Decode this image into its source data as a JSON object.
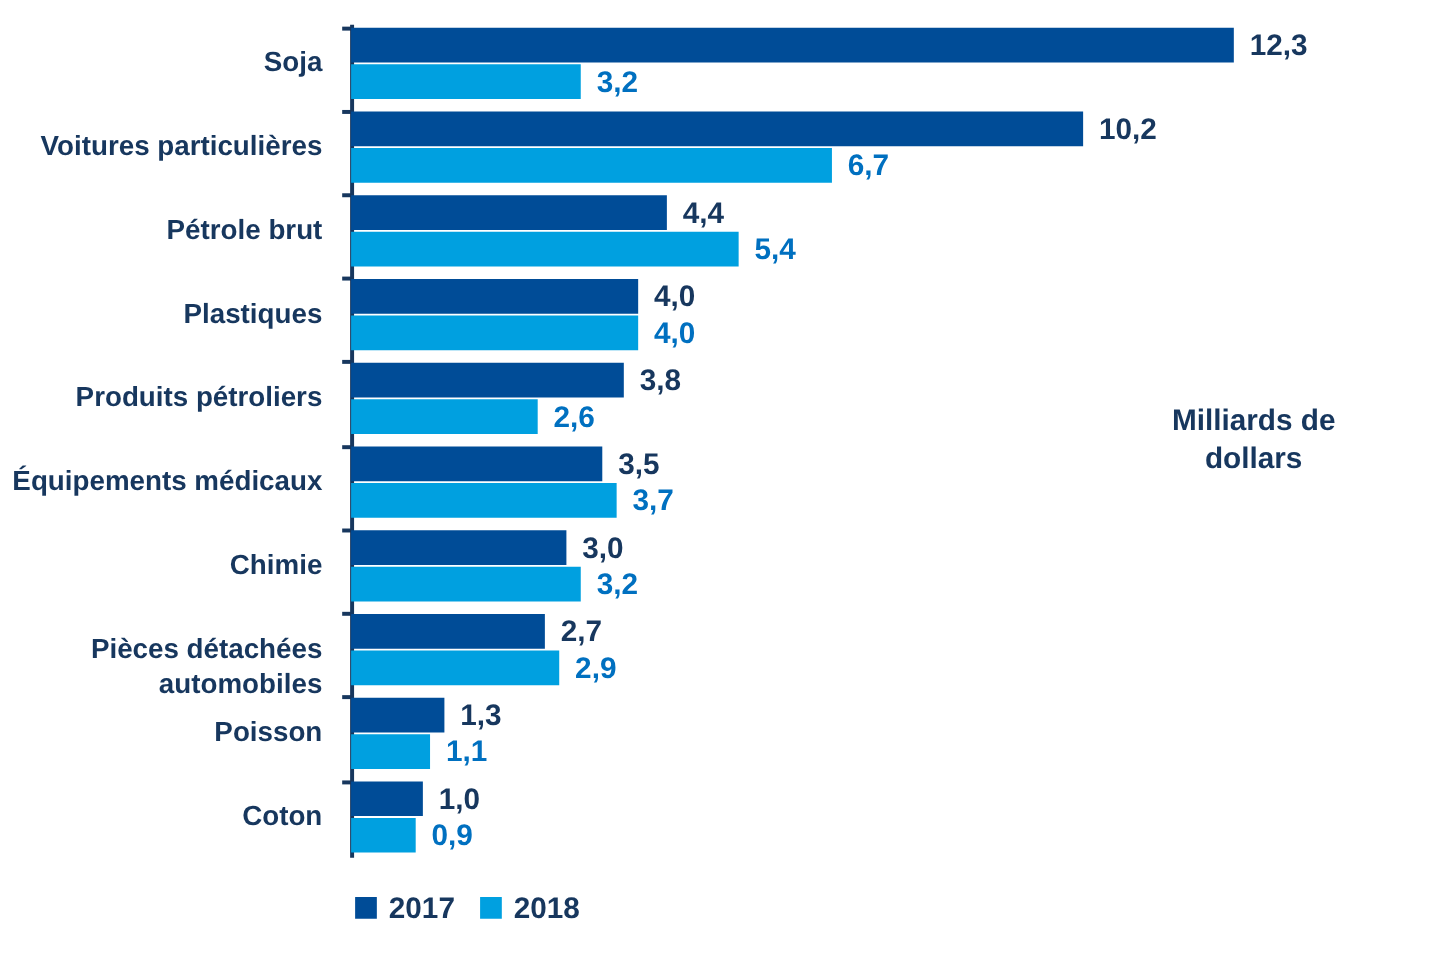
{
  "chart_data": {
    "type": "bar",
    "orientation": "horizontal",
    "legend": "bottom",
    "grid": false,
    "categories": [
      "Soja",
      "Voitures particulières",
      "Pétrole brut",
      "Plastiques",
      "Produits pétroliers",
      "Équipements médicaux",
      "Chimie",
      "Pièces détachées automobiles",
      "Poisson",
      "Coton"
    ],
    "series": [
      {
        "name": "2017",
        "color": "#004c97",
        "values": [
          12.3,
          10.2,
          4.4,
          4.0,
          3.8,
          3.5,
          3.0,
          2.7,
          1.3,
          1.0
        ],
        "value_labels": [
          "12,3",
          "10,2",
          "4,4",
          "4,0",
          "3,8",
          "3,5",
          "3,0",
          "2,7",
          "1,3",
          "1,0"
        ]
      },
      {
        "name": "2018",
        "color": "#00a0e0",
        "values": [
          3.2,
          6.7,
          5.4,
          4.0,
          2.6,
          3.7,
          3.2,
          2.9,
          1.1,
          0.9
        ],
        "value_labels": [
          "3,2",
          "6,7",
          "5,4",
          "4,0",
          "2,6",
          "3,7",
          "3,2",
          "2,9",
          "1,1",
          "0,9"
        ]
      }
    ],
    "annotations": [
      "Milliards de dollars"
    ]
  }
}
